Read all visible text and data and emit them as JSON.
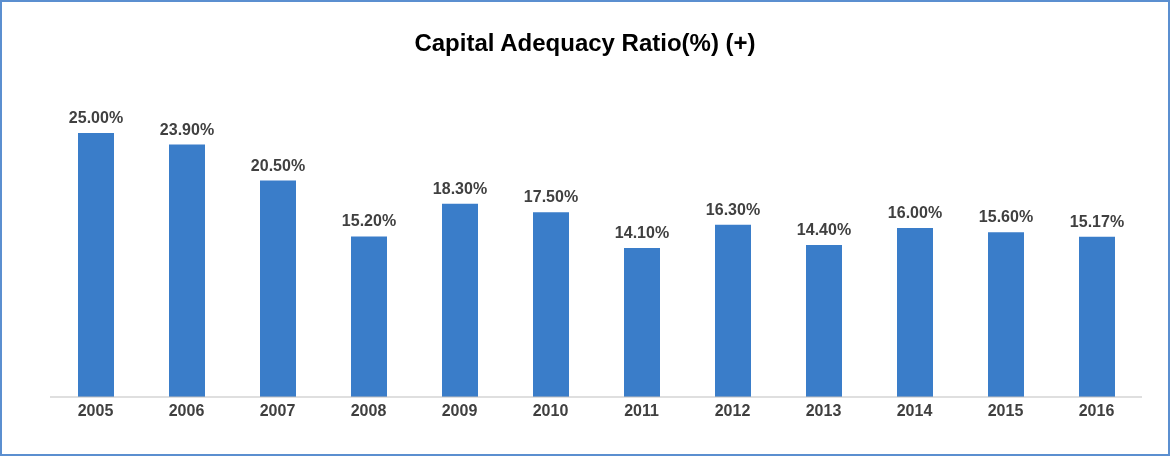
{
  "chart_data": {
    "type": "bar",
    "title": "Capital Adequacy Ratio(%) (+)",
    "categories": [
      "2005",
      "2006",
      "2007",
      "2008",
      "2009",
      "2010",
      "2011",
      "2012",
      "2013",
      "2014",
      "2015",
      "2016"
    ],
    "values": [
      25.0,
      23.9,
      20.5,
      15.2,
      18.3,
      17.5,
      14.1,
      16.3,
      14.4,
      16.0,
      15.6,
      15.17
    ],
    "value_labels": [
      "25.00%",
      "23.90%",
      "20.50%",
      "15.20%",
      "18.30%",
      "17.50%",
      "14.10%",
      "16.30%",
      "14.40%",
      "16.00%",
      "15.60%",
      "15.17%"
    ],
    "color": "#3a7dc9",
    "grid": false,
    "legend": false
  }
}
